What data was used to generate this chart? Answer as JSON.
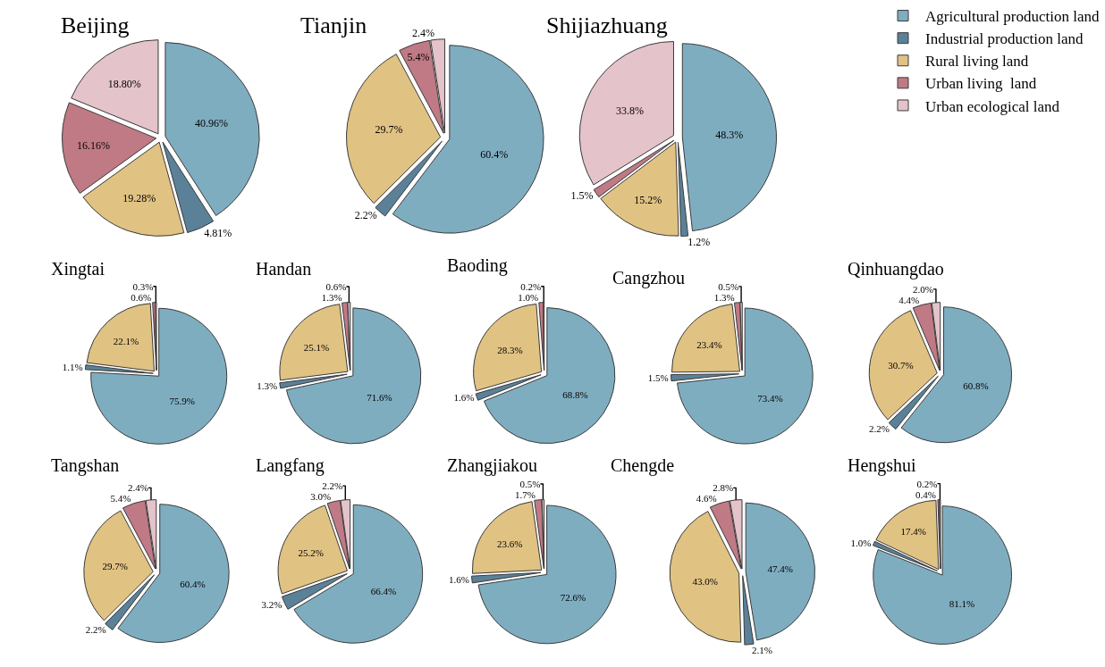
{
  "chart_data": [
    {
      "type": "pie",
      "title": "Beijing",
      "categories": [
        "Agricultural production land",
        "Industrial production land",
        "Rural living land",
        "Urban living  land",
        "Urban ecological land"
      ],
      "values": [
        40.96,
        4.81,
        19.28,
        16.16,
        18.8
      ],
      "value_labels": [
        "40.96%",
        "4.81%",
        "19.28%",
        "16.16%",
        "18.80%"
      ],
      "colors": [
        "#7fadc0",
        "#5b8198",
        "#e0c283",
        "#c07a85",
        "#e4c3cb"
      ],
      "legend": "right"
    },
    {
      "type": "pie",
      "title": "Tianjin",
      "categories": [
        null,
        null,
        null,
        null,
        null
      ],
      "values": [
        60.4,
        2.2,
        29.7,
        5.4,
        2.4
      ],
      "value_labels": [
        "60.4%",
        "2.2%",
        "29.7%",
        "5.4%",
        "2.4%"
      ],
      "colors": [
        "#7fadc0",
        "#5b8198",
        "#e0c283",
        "#c07a85",
        "#e4c3cb"
      ]
    },
    {
      "type": "pie",
      "title": "Shijiazhuang",
      "categories": [
        null,
        null,
        null,
        null,
        null
      ],
      "values": [
        48.3,
        1.2,
        15.2,
        1.5,
        33.8
      ],
      "value_labels": [
        "48.3%",
        "1.2%",
        "15.2%",
        "1.5%",
        "33.8%"
      ],
      "colors": [
        "#7fadc0",
        "#5b8198",
        "#e0c283",
        "#c07a85",
        "#e4c3cb"
      ]
    },
    {
      "type": "pie",
      "title": "Xingtai",
      "categories": [
        null,
        null,
        null,
        null,
        null
      ],
      "values": [
        75.9,
        1.1,
        22.1,
        0.6,
        0.3
      ],
      "value_labels": [
        "75.9%",
        "1.1%",
        "22.1%",
        "0.6%",
        "0.3%"
      ],
      "colors": [
        "#7fadc0",
        "#5b8198",
        "#e0c283",
        "#c07a85",
        "#e4c3cb"
      ]
    },
    {
      "type": "pie",
      "title": "Handan",
      "categories": [
        null,
        null,
        null,
        null,
        null
      ],
      "values": [
        71.6,
        1.3,
        25.1,
        1.3,
        0.6
      ],
      "value_labels": [
        "71.6%",
        "1.3%",
        "25.1%",
        "1.3%",
        "0.6%"
      ],
      "colors": [
        "#7fadc0",
        "#5b8198",
        "#e0c283",
        "#c07a85",
        "#e4c3cb"
      ]
    },
    {
      "type": "pie",
      "title": "Baoding",
      "categories": [
        null,
        null,
        null,
        null,
        null
      ],
      "values": [
        68.8,
        1.6,
        28.3,
        1.0,
        0.2
      ],
      "value_labels": [
        "68.8%",
        "1.6%",
        "28.3%",
        "1.0%",
        "0.2%"
      ],
      "colors": [
        "#7fadc0",
        "#5b8198",
        "#e0c283",
        "#c07a85",
        "#e4c3cb"
      ]
    },
    {
      "type": "pie",
      "title": "Cangzhou",
      "categories": [
        null,
        null,
        null,
        null,
        null
      ],
      "values": [
        73.4,
        1.5,
        23.4,
        1.3,
        0.5
      ],
      "value_labels": [
        "73.4%",
        "1.5%",
        "23.4%",
        "1.3%",
        "0.5%"
      ],
      "colors": [
        "#7fadc0",
        "#5b8198",
        "#e0c283",
        "#c07a85",
        "#e4c3cb"
      ]
    },
    {
      "type": "pie",
      "title": "Qinhuangdao",
      "categories": [
        null,
        null,
        null,
        null,
        null
      ],
      "values": [
        60.8,
        2.2,
        30.7,
        4.4,
        2.0
      ],
      "value_labels": [
        "60.8%",
        "2.2%",
        "30.7%",
        "4.4%",
        "2.0%"
      ],
      "colors": [
        "#7fadc0",
        "#5b8198",
        "#e0c283",
        "#c07a85",
        "#e4c3cb"
      ]
    },
    {
      "type": "pie",
      "title": "Tangshan",
      "categories": [
        null,
        null,
        null,
        null,
        null
      ],
      "values": [
        60.4,
        2.2,
        29.7,
        5.4,
        2.4
      ],
      "value_labels": [
        "60.4%",
        "2.2%",
        "29.7%",
        "5.4%",
        "2.4%"
      ],
      "colors": [
        "#7fadc0",
        "#5b8198",
        "#e0c283",
        "#c07a85",
        "#e4c3cb"
      ]
    },
    {
      "type": "pie",
      "title": "Langfang",
      "categories": [
        null,
        null,
        null,
        null,
        null
      ],
      "values": [
        66.4,
        3.2,
        25.2,
        3.0,
        2.2
      ],
      "value_labels": [
        "66.4%",
        "3.2%",
        "25.2%",
        "3.0%",
        "2.2%"
      ],
      "colors": [
        "#7fadc0",
        "#5b8198",
        "#e0c283",
        "#c07a85",
        "#e4c3cb"
      ]
    },
    {
      "type": "pie",
      "title": "Zhangjiakou",
      "categories": [
        null,
        null,
        null,
        null,
        null
      ],
      "values": [
        72.6,
        1.6,
        23.6,
        1.7,
        0.5
      ],
      "value_labels": [
        "72.6%",
        "1.6%",
        "23.6%",
        "1.7%",
        "0.5%"
      ],
      "colors": [
        "#7fadc0",
        "#5b8198",
        "#e0c283",
        "#c07a85",
        "#e4c3cb"
      ]
    },
    {
      "type": "pie",
      "title": "Chengde",
      "categories": [
        null,
        null,
        null,
        null,
        null
      ],
      "values": [
        47.4,
        2.1,
        43.0,
        4.6,
        2.8
      ],
      "value_labels": [
        "47.4%",
        "2.1%",
        "43.0%",
        "4.6%",
        "2.8%"
      ],
      "colors": [
        "#7fadc0",
        "#5b8198",
        "#e0c283",
        "#c07a85",
        "#e4c3cb"
      ]
    },
    {
      "type": "pie",
      "title": "Hengshui",
      "categories": [
        null,
        null,
        null,
        null,
        null
      ],
      "values": [
        81.1,
        1.0,
        17.4,
        0.4,
        0.2
      ],
      "value_labels": [
        "81.1%",
        "1.0%",
        "17.4%",
        "0.4%",
        "0.2%"
      ],
      "colors": [
        "#7fadc0",
        "#5b8198",
        "#e0c283",
        "#c07a85",
        "#e4c3cb"
      ]
    }
  ]
}
